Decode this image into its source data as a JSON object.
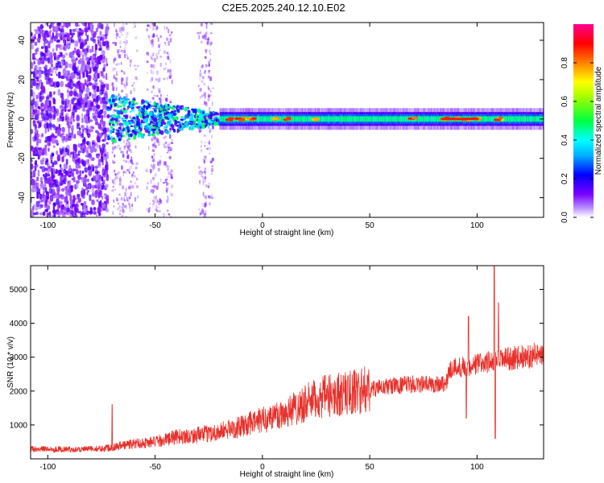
{
  "title": "C2E5.2025.240.12.10.E02",
  "chart_data": [
    {
      "type": "heatmap",
      "xlabel": "Height of straight line (km)",
      "ylabel": "Frequency (Hz)",
      "xlim": [
        -108,
        131
      ],
      "ylim": [
        -50,
        49
      ],
      "xticks": [
        -100,
        -50,
        0,
        50,
        100
      ],
      "yticks": [
        -40,
        -20,
        0,
        20,
        40
      ],
      "colorbar": {
        "label": "Normalized spectral amplitude",
        "range": [
          0,
          1
        ],
        "ticks": [
          "0.0",
          "0.2",
          "0.4",
          "0.6",
          "0.8"
        ],
        "colors": [
          "#ffffff",
          "#7a00ff",
          "#0000ff",
          "#00ffff",
          "#00ff00",
          "#ffff00",
          "#ff8000",
          "#ff0000",
          "#ff00a0"
        ]
      },
      "band": {
        "center_frequency": 0,
        "noisy_region_x": [
          -108,
          -72
        ],
        "transition_region_x": [
          -72,
          -20
        ],
        "steady_band_x": [
          -20,
          131
        ],
        "steady_band_halfwidth_hz": 2.5,
        "hotspots_x": [
          -15,
          -10,
          -5,
          6,
          11,
          25,
          70,
          85,
          90,
          95,
          100,
          110
        ]
      }
    },
    {
      "type": "line",
      "xlabel": "Height of straight line (km)",
      "ylabel": "SNR (10 * v/v)",
      "xlim": [
        -108,
        131
      ],
      "ylim": [
        0,
        5700
      ],
      "xticks": [
        -100,
        -50,
        0,
        50,
        100
      ],
      "yticks": [
        1000,
        2000,
        3000,
        4000,
        5000
      ],
      "color": "#e8302a",
      "trend": {
        "x": [
          -108,
          -90,
          -75,
          -60,
          -50,
          -40,
          -30,
          -20,
          -10,
          0,
          10,
          20,
          30,
          40,
          50,
          60,
          70,
          80,
          86,
          87,
          95,
          100,
          105,
          110,
          120,
          131
        ],
        "y": [
          300,
          280,
          300,
          450,
          500,
          650,
          700,
          800,
          950,
          1150,
          1350,
          1650,
          1850,
          1950,
          2050,
          2150,
          2200,
          2200,
          2250,
          2650,
          2750,
          2800,
          2850,
          2900,
          3000,
          3100
        ]
      },
      "spikes": [
        {
          "x": -70,
          "y": 1600
        },
        {
          "x": 8,
          "y": 900
        },
        {
          "x": 95,
          "y": 1200
        },
        {
          "x": 96,
          "y": 4200
        },
        {
          "x": 108,
          "y": 5700
        },
        {
          "x": 108.5,
          "y": 600
        },
        {
          "x": 110,
          "y": 4600
        }
      ]
    }
  ]
}
